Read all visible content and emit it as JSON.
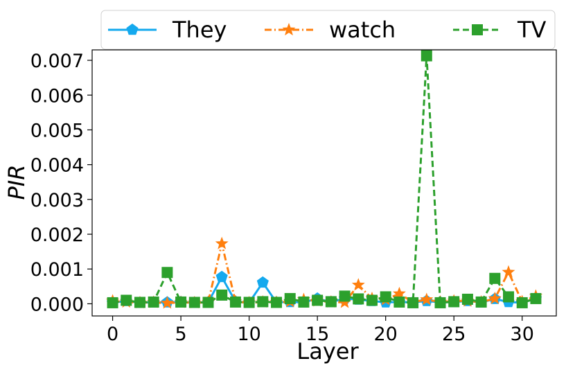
{
  "chart_data": {
    "type": "line",
    "xlabel": "Layer",
    "ylabel": "PIR",
    "xlim": [
      -1.5,
      32.5
    ],
    "ylim": [
      -0.00035,
      0.0073
    ],
    "xticks": [
      0,
      5,
      10,
      15,
      20,
      25,
      30
    ],
    "xtick_labels": [
      "0",
      "5",
      "10",
      "15",
      "20",
      "25",
      "30"
    ],
    "yticks": [
      0.0,
      0.001,
      0.002,
      0.003,
      0.004,
      0.005,
      0.006,
      0.007
    ],
    "ytick_labels": [
      "0.000",
      "0.001",
      "0.002",
      "0.003",
      "0.004",
      "0.005",
      "0.006",
      "0.007"
    ],
    "grid": false,
    "legend_position": "top",
    "x": [
      0,
      1,
      2,
      3,
      4,
      5,
      6,
      7,
      8,
      9,
      10,
      11,
      12,
      13,
      14,
      15,
      16,
      17,
      18,
      19,
      20,
      21,
      22,
      23,
      24,
      25,
      26,
      27,
      28,
      29,
      30,
      31
    ],
    "series": [
      {
        "name": "They",
        "color": "#14a9ee",
        "marker": "pentagon",
        "linestyle": "solid",
        "values": [
          3e-05,
          8e-05,
          3e-05,
          4e-05,
          4e-05,
          5e-05,
          3e-05,
          4e-05,
          0.00077,
          6e-05,
          3e-05,
          0.00061,
          4e-05,
          5e-05,
          4e-05,
          0.00015,
          5e-05,
          0.00015,
          0.00012,
          8e-05,
          4e-05,
          5e-05,
          4e-05,
          8e-05,
          4e-05,
          5e-05,
          8e-05,
          4e-05,
          0.00014,
          5e-05,
          3e-05,
          0.00015
        ]
      },
      {
        "name": "watch",
        "color": "#ff7f0e",
        "marker": "star",
        "linestyle": "dashdot",
        "values": [
          8e-05,
          5e-05,
          3e-05,
          4e-05,
          2e-05,
          4e-05,
          3e-05,
          4e-05,
          0.00173,
          6e-05,
          3e-05,
          5e-05,
          4e-05,
          6e-05,
          0.00012,
          8e-05,
          5e-05,
          4e-05,
          0.00054,
          0.00015,
          0.00012,
          0.00029,
          5e-05,
          0.00012,
          5e-05,
          8e-05,
          8e-05,
          5e-05,
          0.00015,
          0.00091,
          6e-05,
          0.00022
        ]
      },
      {
        "name": "TV",
        "color": "#2ca02c",
        "marker": "square",
        "linestyle": "dashed",
        "values": [
          3e-05,
          0.0001,
          4e-05,
          5e-05,
          0.0009,
          5e-05,
          4e-05,
          4e-05,
          0.00025,
          5e-05,
          4e-05,
          6e-05,
          4e-05,
          0.00015,
          5e-05,
          0.0001,
          6e-05,
          0.00022,
          0.00014,
          0.0001,
          0.0002,
          5e-05,
          3e-05,
          0.00713,
          3e-05,
          6e-05,
          0.00013,
          5e-05,
          0.00073,
          0.0002,
          3e-05,
          0.00015
        ]
      }
    ]
  }
}
